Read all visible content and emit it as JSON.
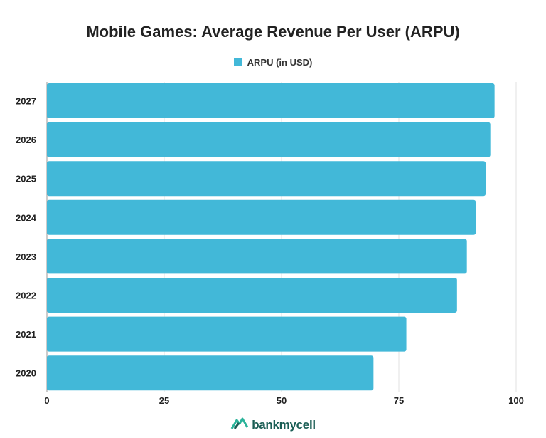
{
  "chart_data": {
    "type": "bar",
    "orientation": "horizontal",
    "title": "Mobile Games: Average Revenue Per User (ARPU)",
    "categories": [
      "2027",
      "2026",
      "2025",
      "2024",
      "2023",
      "2022",
      "2021",
      "2020"
    ],
    "series": [
      {
        "name": "ARPU (in USD)",
        "color": "#42b8d8",
        "values": [
          95.4,
          94.5,
          93.5,
          91.4,
          89.5,
          87.4,
          76.6,
          69.6
        ]
      }
    ],
    "xlim": [
      0,
      100
    ],
    "xticks": [
      "0",
      "25",
      "50",
      "75",
      "100"
    ],
    "grid": true,
    "legend_position": "top-center"
  },
  "branding": {
    "logo_text": "bankmycell",
    "logo_icon": "bankmycell-logo-icon"
  }
}
